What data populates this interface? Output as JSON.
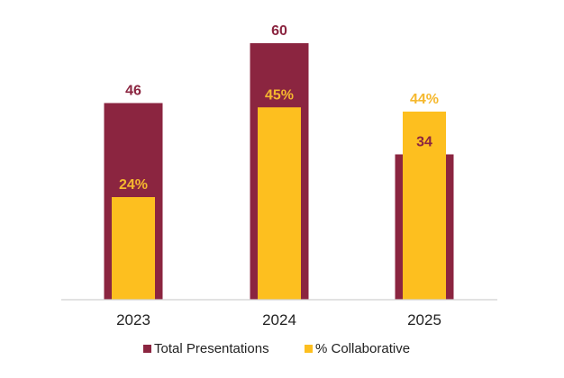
{
  "chart_data": {
    "type": "bar",
    "title": "",
    "xlabel": "",
    "ylabel": "",
    "categories": [
      "2023",
      "2024",
      "2025"
    ],
    "ylim": [
      0,
      60
    ],
    "grid": false,
    "legend_position": "bottom",
    "series": [
      {
        "name": "Total Presentations",
        "values": [
          46,
          60,
          34
        ],
        "labels": [
          "46",
          "60",
          "34"
        ],
        "color": "#8B2540",
        "label_color": "#8B2540"
      },
      {
        "name": "% Collaborative",
        "values": [
          24,
          45,
          44
        ],
        "labels": [
          "24%",
          "45%",
          "44%"
        ],
        "color": "#FDBF1F",
        "label_color": "#F5B82E"
      }
    ]
  }
}
